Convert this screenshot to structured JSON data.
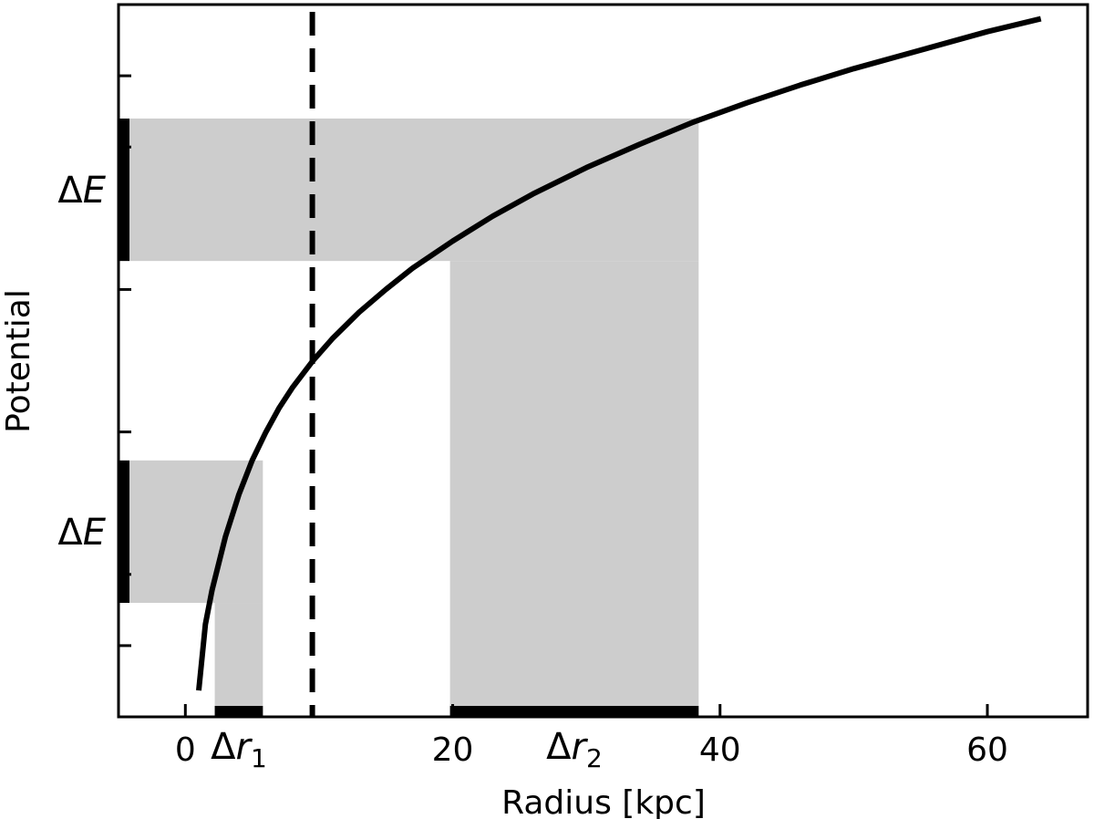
{
  "chart_data": {
    "type": "line",
    "title": "",
    "xlabel": "Radius [kpc]",
    "ylabel": "Potential",
    "xlim": [
      -5,
      67.5
    ],
    "ylim": [
      0,
      1
    ],
    "x_ticks": [
      0,
      20,
      40,
      60
    ],
    "x_tick_labels": [
      "0",
      "20",
      "40",
      "60"
    ],
    "y_ticks": [
      0.1,
      0.2,
      0.4,
      0.6,
      0.8,
      0.9
    ],
    "y_tick_labels": [],
    "grid": false,
    "legend": null,
    "curve": {
      "x": [
        1,
        1.5,
        2,
        3,
        4,
        5,
        6,
        7,
        8,
        9.5,
        11,
        13,
        15,
        17,
        20,
        23,
        26,
        30,
        34,
        38,
        42,
        46,
        50,
        55,
        60,
        64
      ],
      "y": [
        0.037,
        0.13,
        0.178,
        0.253,
        0.312,
        0.36,
        0.399,
        0.433,
        0.462,
        0.499,
        0.531,
        0.568,
        0.6,
        0.63,
        0.668,
        0.703,
        0.734,
        0.771,
        0.804,
        0.835,
        0.862,
        0.887,
        0.91,
        0.936,
        0.962,
        0.98
      ]
    },
    "dashed_line_x": 9.5,
    "bands": [
      {
        "label": "ΔE",
        "r_label": "Δr",
        "r_sub": "1",
        "y_range": [
          0.16,
          0.36
        ],
        "r_range": [
          2.2,
          5.8
        ]
      },
      {
        "label": "ΔE",
        "r_label": "Δr",
        "r_sub": "2",
        "y_range": [
          0.64,
          0.84
        ],
        "r_range": [
          19.8,
          38.4
        ]
      }
    ],
    "colors": {
      "band": "#cdcdcd",
      "line": "#000000"
    }
  }
}
